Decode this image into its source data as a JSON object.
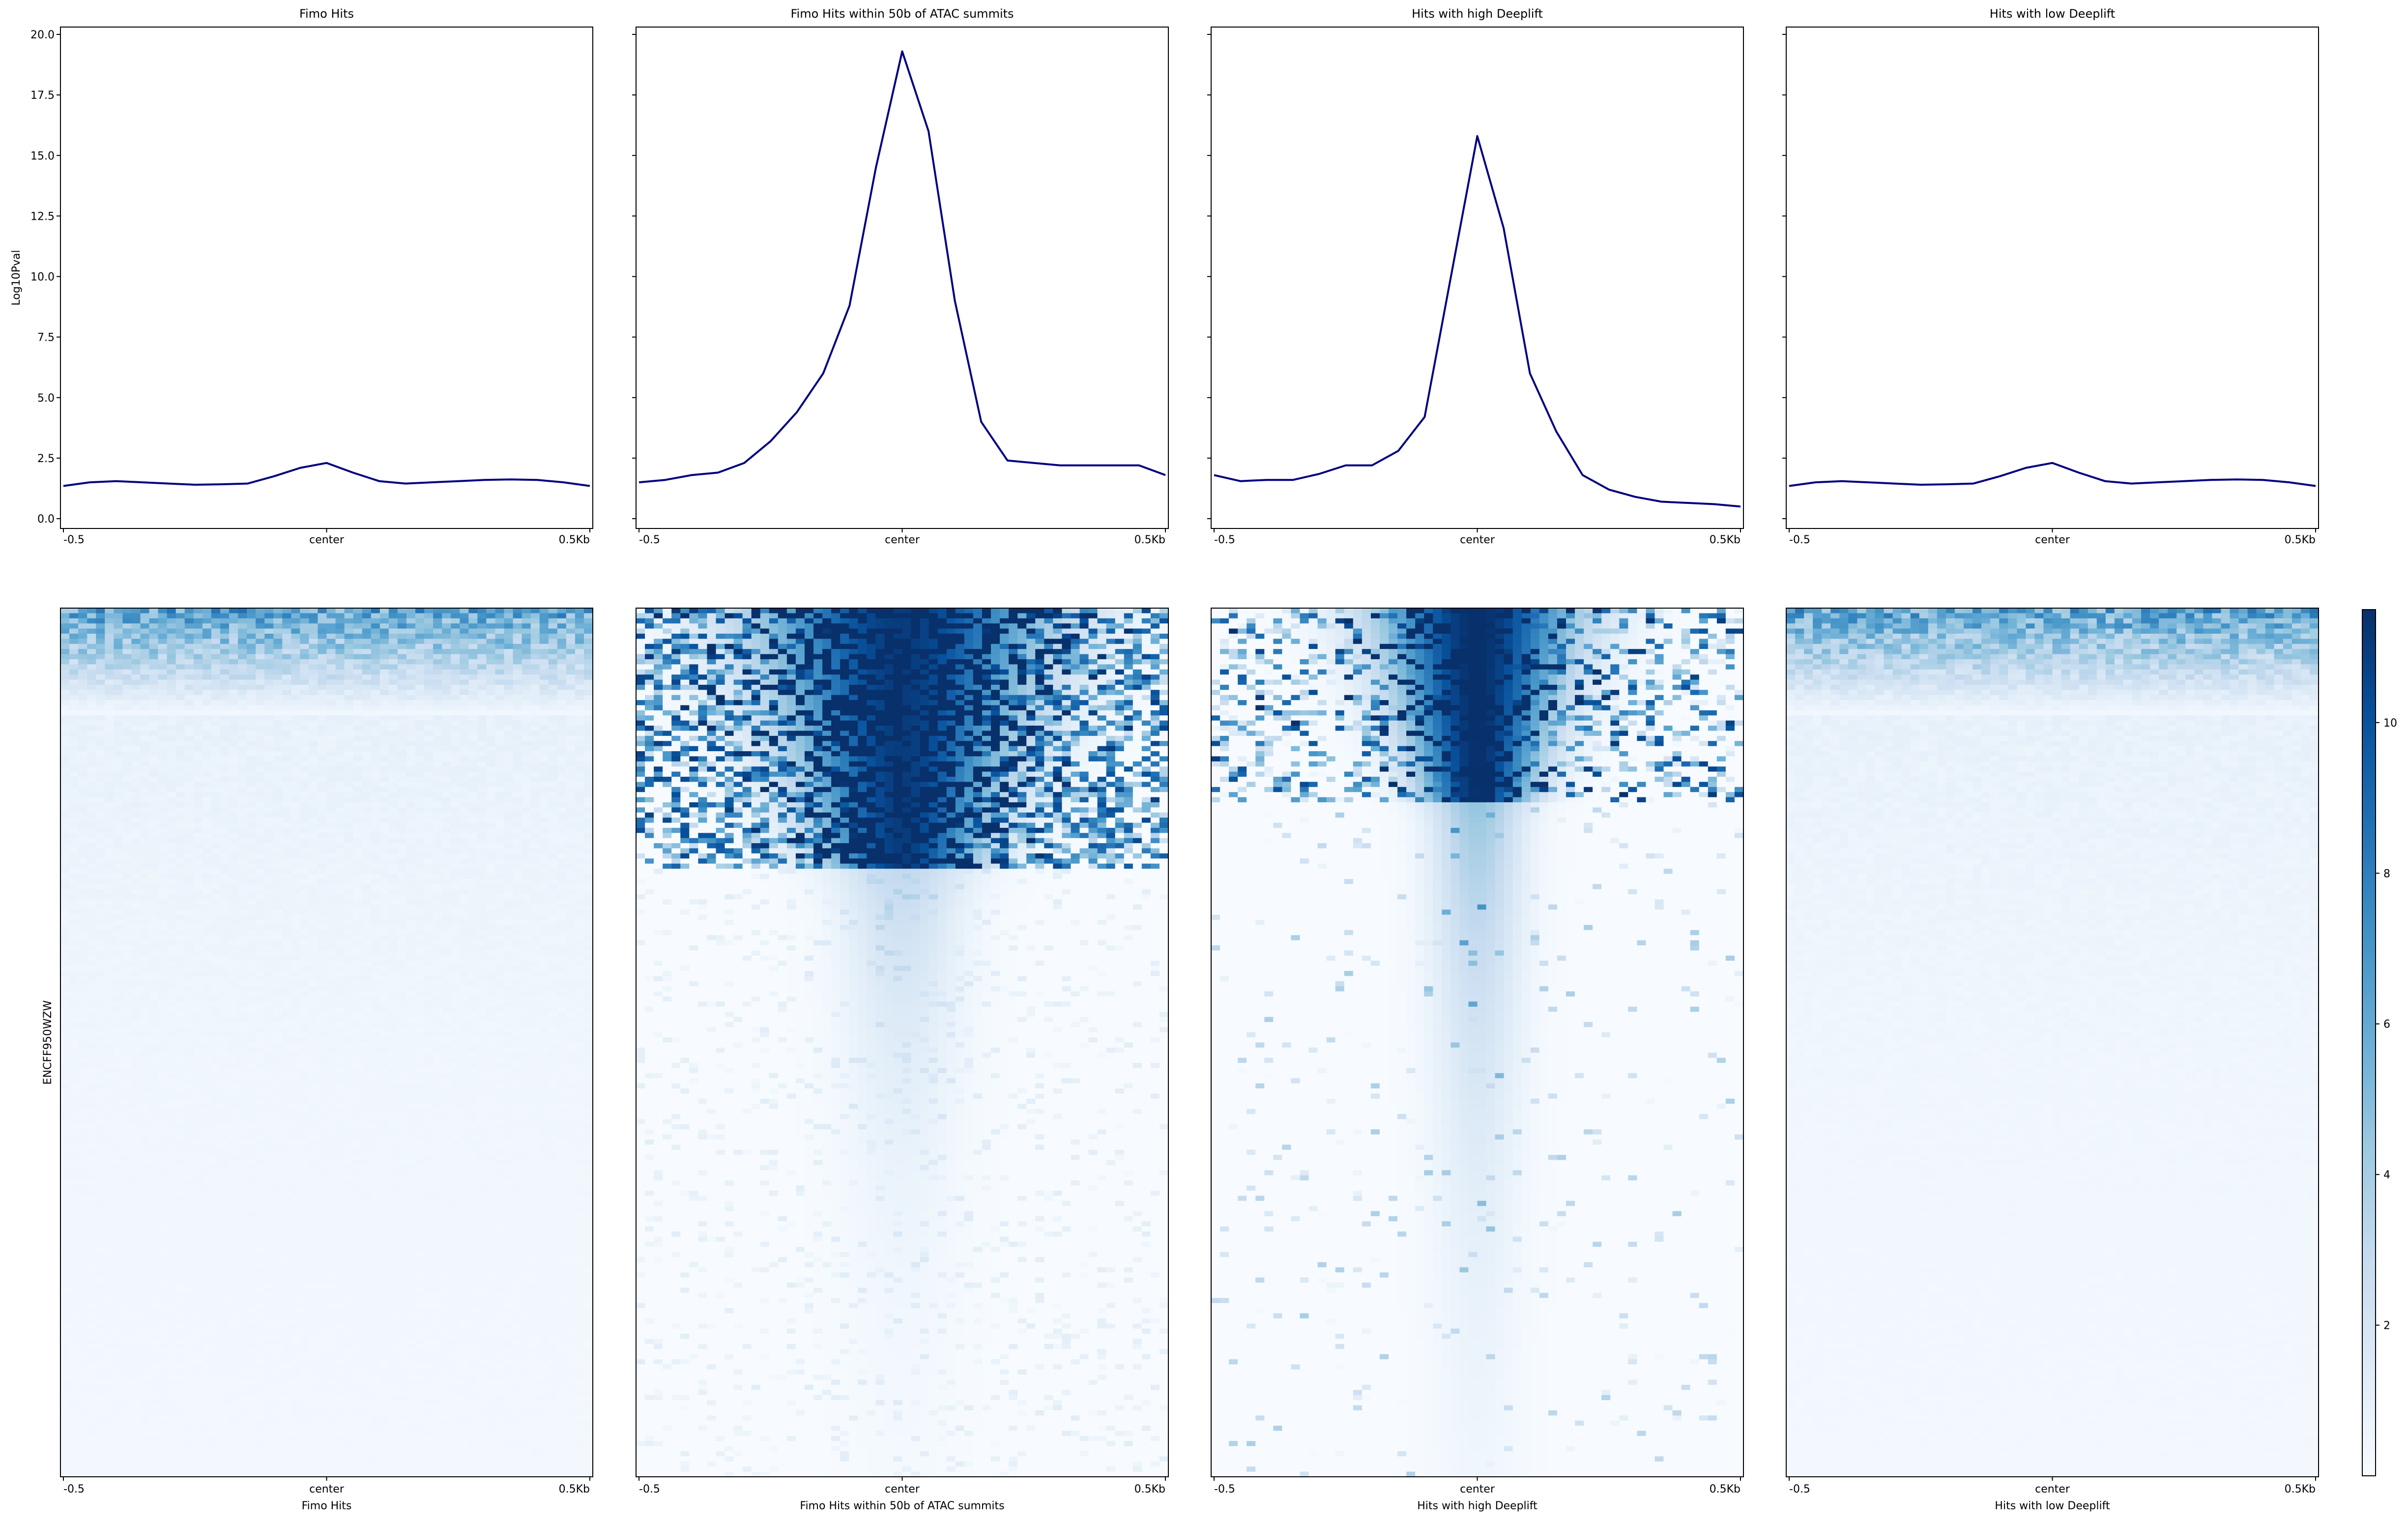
{
  "chart_data": {
    "type": "heatmap",
    "ylabel_profile": "Log10Pval",
    "ylabel_heatmap": "ENCFF950WZW",
    "x_ticks": [
      "-0.5",
      "center",
      "0.5Kb"
    ],
    "profile_ylim": [
      0,
      20
    ],
    "profile_yticks": [
      "0.0",
      "2.5",
      "5.0",
      "7.5",
      "10.0",
      "12.5",
      "15.0",
      "17.5",
      "20.0"
    ],
    "colorbar": {
      "cmap": "Blues",
      "range": [
        0,
        11.5
      ],
      "ticks": [
        "2",
        "4",
        "6",
        "8",
        "10"
      ]
    },
    "line_color": "#000080",
    "x": [
      -0.5,
      -0.45,
      -0.4,
      -0.35,
      -0.3,
      -0.25,
      -0.2,
      -0.15,
      -0.1,
      -0.05,
      0.0,
      0.05,
      0.1,
      0.15,
      0.2,
      0.25,
      0.3,
      0.35,
      0.4,
      0.45,
      0.5
    ],
    "panels": [
      {
        "title": "Fimo Hits",
        "xlabel": "Fimo Hits",
        "profile": [
          1.35,
          1.5,
          1.55,
          1.5,
          1.45,
          1.4,
          1.42,
          1.45,
          1.75,
          2.1,
          2.3,
          1.9,
          1.55,
          1.45,
          1.5,
          1.55,
          1.6,
          1.62,
          1.6,
          1.5,
          1.35
        ]
      },
      {
        "title": "Fimo Hits within 50b of ATAC summits",
        "xlabel": "Fimo Hits within 50b of ATAC summits",
        "profile": [
          1.5,
          1.6,
          1.8,
          1.9,
          2.3,
          3.2,
          4.4,
          6.0,
          8.8,
          14.5,
          19.3,
          16.0,
          9.0,
          4.0,
          2.4,
          2.3,
          2.2,
          2.2,
          2.2,
          2.2,
          1.8
        ]
      },
      {
        "title": "Hits with high Deeplift",
        "xlabel": "Hits with high Deeplift",
        "profile": [
          1.8,
          1.55,
          1.6,
          1.6,
          1.85,
          2.2,
          2.2,
          2.8,
          4.2,
          10.0,
          15.8,
          12.0,
          6.0,
          3.6,
          1.8,
          1.2,
          0.9,
          0.7,
          0.65,
          0.6,
          0.5
        ]
      },
      {
        "title": "Hits with low Deeplift",
        "xlabel": "Hits with low Deeplift",
        "profile": [
          1.35,
          1.5,
          1.55,
          1.5,
          1.45,
          1.4,
          1.42,
          1.45,
          1.75,
          2.1,
          2.3,
          1.9,
          1.55,
          1.45,
          1.5,
          1.55,
          1.6,
          1.62,
          1.6,
          1.5,
          1.35
        ]
      }
    ]
  }
}
